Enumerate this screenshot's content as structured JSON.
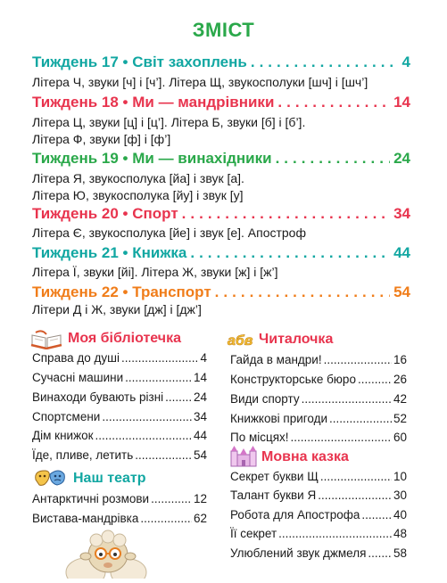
{
  "title": "ЗМІСТ",
  "colors": {
    "title": "#2aa84a",
    "week17": "#12a7a2",
    "week18": "#e8344e",
    "week19": "#2aa84a",
    "week20": "#e8344e",
    "week21": "#12a7a2",
    "week22": "#f07d1a",
    "section_library": "#e8344e",
    "section_reader": "#e8344e",
    "section_tale": "#e8344e",
    "section_theatre": "#12a7a2"
  },
  "weeks": [
    {
      "label": "Тиждень 17 • Світ захоплень",
      "page": "4",
      "lines": [
        "Літера Ч, звуки [ч] і [ч’]. Літера Щ, звукосполуки [шч] і [шч’]"
      ]
    },
    {
      "label": "Тиждень 18 • Ми — мандрівники",
      "page": "14",
      "lines": [
        "Літера Ц, звуки [ц] і [ц’]. Літера Б, звуки [б] і [б’].",
        "Літера Ф, звуки [ф] і [ф’]"
      ]
    },
    {
      "label": "Тиждень 19 • Ми — винахідники",
      "page": "24",
      "lines": [
        "Літера Я, звукосполука [йа] і звук [а].",
        "Літера Ю, звукосполука [йу] і звук [у]"
      ]
    },
    {
      "label": "Тиждень 20 • Спорт",
      "page": "34",
      "lines": [
        "Літера Є, звукосполука [йе] і звук [е]. Апостроф"
      ]
    },
    {
      "label": "Тиждень 21 • Книжка",
      "page": "44",
      "lines": [
        "Літера Ї, звуки [йі]. Літера Ж, звуки [ж] і [ж’]"
      ]
    },
    {
      "label": "Тиждень 22 • Транспорт",
      "page": "54",
      "lines": [
        "Літери Д і Ж, звуки [дж] і [дж’]"
      ]
    }
  ],
  "library": {
    "title": "Моя бібліотечка",
    "entries": [
      {
        "label": "Справа до душі",
        "page": "4"
      },
      {
        "label": "Сучасні машини",
        "page": "14"
      },
      {
        "label": "Винаходи бувають різні",
        "page": "24"
      },
      {
        "label": "Спортсмени",
        "page": "34"
      },
      {
        "label": "Дім книжок",
        "page": "44"
      },
      {
        "label": "Їде, пливе, летить",
        "page": "54"
      }
    ]
  },
  "theatre": {
    "title": "Наш театр",
    "entries": [
      {
        "label": "Антарктичні розмови",
        "page": "12"
      },
      {
        "label": "Вистава-мандрівка",
        "page": "62"
      }
    ]
  },
  "reader": {
    "badge": "абв",
    "title": "Читалочка",
    "entries": [
      {
        "label": "Гайда в мандри!",
        "page": "16"
      },
      {
        "label": "Конструкторське бюро",
        "page": "26"
      },
      {
        "label": "Види спорту",
        "page": "42"
      },
      {
        "label": "Книжкові пригоди",
        "page": "52"
      },
      {
        "label": "По місцях!",
        "page": "60"
      }
    ]
  },
  "tale": {
    "title": "Мовна казка",
    "entries": [
      {
        "label": "Секрет букви Щ",
        "page": "10"
      },
      {
        "label": "Талант букви Я",
        "page": "30"
      },
      {
        "label": "Робота для Апострофа",
        "page": "40"
      },
      {
        "label": "Її секрет",
        "page": "48"
      },
      {
        "label": "Улюблений звук джмеля",
        "page": "58"
      }
    ]
  }
}
